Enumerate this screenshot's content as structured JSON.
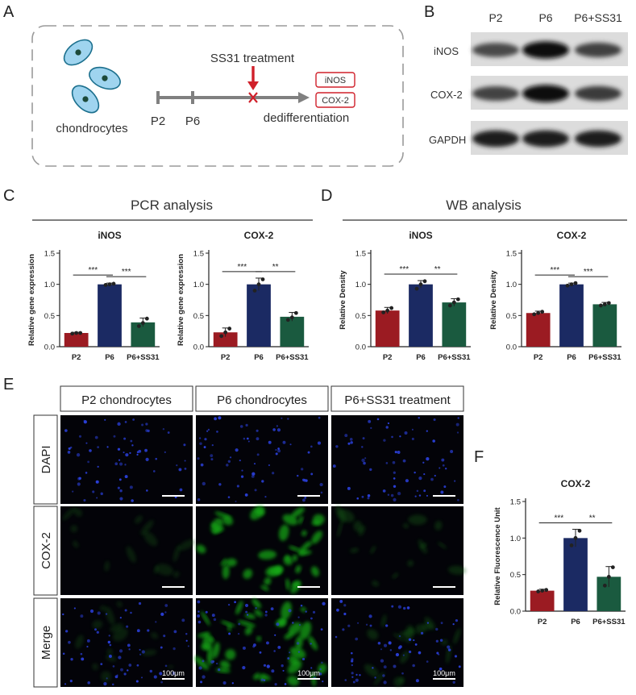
{
  "panels": {
    "A": {
      "letter": "A",
      "cells_label": "chondrocytes",
      "timeline": {
        "p2": "P2",
        "p6": "P6",
        "treatment": "SS31 treatment",
        "process": "dedifferentiation"
      },
      "markers": [
        "iNOS",
        "COX-2"
      ],
      "colors": {
        "cell_fill": "#9fd4ef",
        "cell_stroke": "#1b6f8d",
        "nucleus": "#1c4a3a",
        "arrow": "#808080",
        "treatment": "#d0202a"
      }
    },
    "B": {
      "letter": "B",
      "lanes": [
        "P2",
        "P6",
        "P6+SS31"
      ],
      "rows": [
        "iNOS",
        "COX-2",
        "GAPDH"
      ],
      "band_intensity": [
        [
          0.55,
          0.95,
          0.62
        ],
        [
          0.6,
          0.95,
          0.65
        ],
        [
          0.85,
          0.88,
          0.86
        ]
      ]
    },
    "C": {
      "letter": "C",
      "section_title": "PCR analysis"
    },
    "D": {
      "letter": "D",
      "section_title": "WB analysis"
    },
    "E": {
      "letter": "E",
      "col_titles": [
        "P2 chondrocytes",
        "P6 chondrocytes",
        "P6+SS31 treatment"
      ],
      "row_labels": [
        "DAPI",
        "COX-2",
        "Merge"
      ],
      "scale_bar": "100μm",
      "green_intensity": [
        0.15,
        0.75,
        0.22
      ]
    },
    "F": {
      "letter": "F"
    }
  },
  "chart_data": [
    {
      "id": "C1",
      "type": "bar",
      "title": "iNOS",
      "ylabel": "Relative gene expression",
      "categories": [
        "P2",
        "P6",
        "P6+SS31"
      ],
      "values": [
        0.22,
        1.0,
        0.39
      ],
      "errors": [
        0.01,
        0.02,
        0.07
      ],
      "ylim": [
        0,
        1.5
      ],
      "yticks": [
        0.0,
        0.5,
        1.0,
        1.5
      ],
      "points": [
        [
          0.21,
          0.22,
          0.22
        ],
        [
          0.99,
          1.0,
          1.01
        ],
        [
          0.33,
          0.38,
          0.45
        ]
      ],
      "significance": [
        {
          "pair": [
            0,
            1
          ],
          "label": "***"
        },
        {
          "pair": [
            1,
            2
          ],
          "label": "***"
        }
      ],
      "colors": [
        "#9b1b22",
        "#1b2a63",
        "#1a5a3f"
      ]
    },
    {
      "id": "C2",
      "type": "bar",
      "title": "COX-2",
      "ylabel": "Relative gene expression",
      "categories": [
        "P2",
        "P6",
        "P6+SS31"
      ],
      "values": [
        0.23,
        1.0,
        0.48
      ],
      "errors": [
        0.07,
        0.1,
        0.07
      ],
      "ylim": [
        0,
        1.5
      ],
      "yticks": [
        0.0,
        0.5,
        1.0,
        1.5
      ],
      "points": [
        [
          0.17,
          0.23,
          0.29
        ],
        [
          0.9,
          1.0,
          1.08
        ],
        [
          0.43,
          0.47,
          0.54
        ]
      ],
      "significance": [
        {
          "pair": [
            0,
            1
          ],
          "label": "***"
        },
        {
          "pair": [
            1,
            2
          ],
          "label": "**"
        }
      ],
      "colors": [
        "#9b1b22",
        "#1b2a63",
        "#1a5a3f"
      ]
    },
    {
      "id": "D1",
      "type": "bar",
      "title": "iNOS",
      "ylabel": "Relative Density",
      "categories": [
        "P2",
        "P6",
        "P6+SS31"
      ],
      "values": [
        0.58,
        1.0,
        0.71
      ],
      "errors": [
        0.05,
        0.06,
        0.06
      ],
      "ylim": [
        0,
        1.5
      ],
      "yticks": [
        0.0,
        0.5,
        1.0,
        1.5
      ],
      "points": [
        [
          0.55,
          0.58,
          0.62
        ],
        [
          0.93,
          1.0,
          1.05
        ],
        [
          0.66,
          0.71,
          0.76
        ]
      ],
      "significance": [
        {
          "pair": [
            0,
            1
          ],
          "label": "***"
        },
        {
          "pair": [
            1,
            2
          ],
          "label": "**"
        }
      ],
      "colors": [
        "#9b1b22",
        "#1b2a63",
        "#1a5a3f"
      ]
    },
    {
      "id": "D2",
      "type": "bar",
      "title": "COX-2",
      "ylabel": "Relative Density",
      "categories": [
        "P2",
        "P6",
        "P6+SS31"
      ],
      "values": [
        0.54,
        1.0,
        0.68
      ],
      "errors": [
        0.03,
        0.02,
        0.03
      ],
      "ylim": [
        0,
        1.5
      ],
      "yticks": [
        0.0,
        0.5,
        1.0,
        1.5
      ],
      "points": [
        [
          0.52,
          0.54,
          0.56
        ],
        [
          0.98,
          1.0,
          1.02
        ],
        [
          0.66,
          0.68,
          0.7
        ]
      ],
      "significance": [
        {
          "pair": [
            0,
            1
          ],
          "label": "***"
        },
        {
          "pair": [
            1,
            2
          ],
          "label": "***"
        }
      ],
      "colors": [
        "#9b1b22",
        "#1b2a63",
        "#1a5a3f"
      ]
    },
    {
      "id": "F",
      "type": "bar",
      "title": "COX-2",
      "ylabel": "Relative Fluorescence Unit",
      "categories": [
        "P2",
        "P6",
        "P6+SS31"
      ],
      "values": [
        0.28,
        1.0,
        0.47
      ],
      "errors": [
        0.02,
        0.12,
        0.14
      ],
      "ylim": [
        0,
        1.5
      ],
      "yticks": [
        0.0,
        0.5,
        1.0,
        1.5
      ],
      "points": [
        [
          0.27,
          0.28,
          0.29
        ],
        [
          0.9,
          1.0,
          1.1
        ],
        [
          0.35,
          0.47,
          0.6
        ]
      ],
      "significance": [
        {
          "pair": [
            0,
            1
          ],
          "label": "***"
        },
        {
          "pair": [
            1,
            2
          ],
          "label": "**"
        }
      ],
      "colors": [
        "#9b1b22",
        "#1b2a63",
        "#1a5a3f"
      ]
    }
  ]
}
